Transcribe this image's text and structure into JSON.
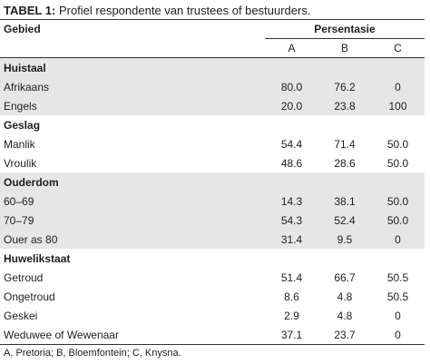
{
  "caption": {
    "label": "TABEL 1:",
    "text": "Profiel respondente van trustees of bestuurders."
  },
  "header": {
    "area": "Gebied",
    "percentage": "Persentasie",
    "columns": [
      "A",
      "B",
      "C"
    ]
  },
  "groups": [
    {
      "title": "Huistaal",
      "rows": [
        {
          "label": "Afrikaans",
          "values": [
            "80.0",
            "76.2",
            "0"
          ]
        },
        {
          "label": "Engels",
          "values": [
            "20.0",
            "23.8",
            "100"
          ]
        }
      ]
    },
    {
      "title": "Geslag",
      "rows": [
        {
          "label": "Manlik",
          "values": [
            "54.4",
            "71.4",
            "50.0"
          ]
        },
        {
          "label": "Vroulik",
          "values": [
            "48.6",
            "28.6",
            "50.0"
          ]
        }
      ]
    },
    {
      "title": "Ouderdom",
      "rows": [
        {
          "label": "60–69",
          "values": [
            "14.3",
            "38.1",
            "50.0"
          ]
        },
        {
          "label": "70–79",
          "values": [
            "54.3",
            "52.4",
            "50.0"
          ]
        },
        {
          "label": "Ouer as 80",
          "values": [
            "31.4",
            "9.5",
            "0"
          ]
        }
      ]
    },
    {
      "title": "Huwelikstaat",
      "rows": [
        {
          "label": "Getroud",
          "values": [
            "51.4",
            "66.7",
            "50.5"
          ]
        },
        {
          "label": "Ongetroud",
          "values": [
            "8.6",
            "4.8",
            "50.5"
          ]
        },
        {
          "label": "Geskei",
          "values": [
            "2.9",
            "4.8",
            "0"
          ]
        },
        {
          "label": "Weduwee of Wewenaar",
          "values": [
            "37.1",
            "23.7",
            "0"
          ]
        }
      ]
    }
  ],
  "footnote": "A, Pretoria; B, Bloemfontein; C, Knysna."
}
